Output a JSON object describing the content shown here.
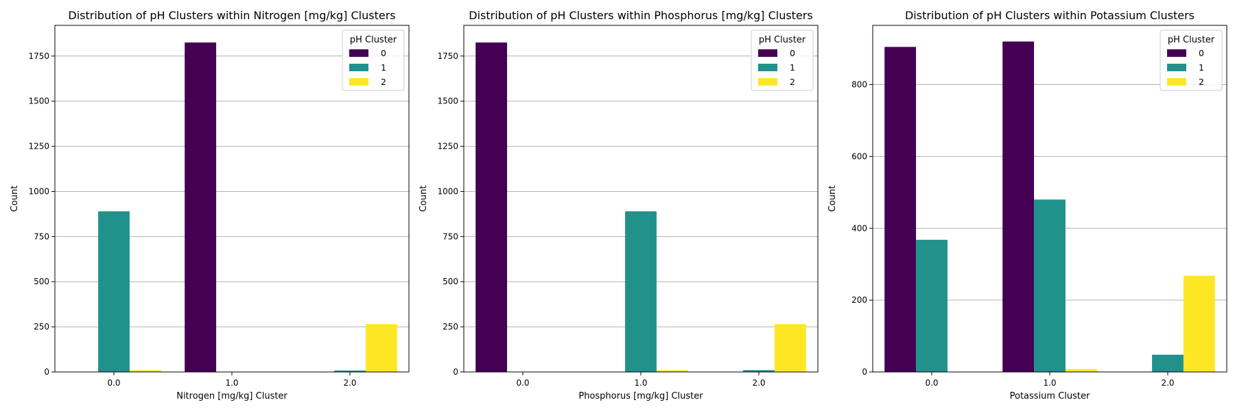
{
  "chart_data": [
    {
      "type": "bar",
      "title": "Distribution of pH Clusters within Nitrogen [mg/kg] Clusters",
      "xlabel": "Nitrogen [mg/kg] Cluster",
      "ylabel": "Count",
      "categories": [
        "0.0",
        "1.0",
        "2.0"
      ],
      "ylim": [
        0,
        1920
      ],
      "yticks": [
        0,
        250,
        500,
        750,
        1000,
        1250,
        1500,
        1750
      ],
      "grid": "y",
      "legend": {
        "title": "pH Cluster",
        "placement": "top-right"
      },
      "series": [
        {
          "name": "0",
          "color": "#440154",
          "values": [
            0,
            1825,
            0
          ]
        },
        {
          "name": "1",
          "color": "#21918c",
          "values": [
            890,
            0,
            8
          ]
        },
        {
          "name": "2",
          "color": "#fde725",
          "values": [
            10,
            0,
            265
          ]
        }
      ]
    },
    {
      "type": "bar",
      "title": "Distribution of pH Clusters within Phosphorus [mg/kg] Clusters",
      "xlabel": "Phosphorus [mg/kg] Cluster",
      "ylabel": "Count",
      "categories": [
        "0.0",
        "1.0",
        "2.0"
      ],
      "ylim": [
        0,
        1920
      ],
      "yticks": [
        0,
        250,
        500,
        750,
        1000,
        1250,
        1500,
        1750
      ],
      "grid": "y",
      "legend": {
        "title": "pH Cluster",
        "placement": "top-right"
      },
      "series": [
        {
          "name": "0",
          "color": "#440154",
          "values": [
            1825,
            0,
            0
          ]
        },
        {
          "name": "1",
          "color": "#21918c",
          "values": [
            0,
            890,
            10
          ]
        },
        {
          "name": "2",
          "color": "#fde725",
          "values": [
            0,
            10,
            265
          ]
        }
      ]
    },
    {
      "type": "bar",
      "title": "Distribution of pH Clusters within Potassium Clusters",
      "xlabel": "Potassium Cluster",
      "ylabel": "Count",
      "categories": [
        "0.0",
        "1.0",
        "2.0"
      ],
      "ylim": [
        0,
        965
      ],
      "yticks": [
        0,
        200,
        400,
        600,
        800
      ],
      "grid": "y",
      "legend": {
        "title": "pH Cluster",
        "placement": "top-right"
      },
      "series": [
        {
          "name": "0",
          "color": "#440154",
          "values": [
            905,
            920,
            0
          ]
        },
        {
          "name": "1",
          "color": "#21918c",
          "values": [
            368,
            480,
            48
          ]
        },
        {
          "name": "2",
          "color": "#fde725",
          "values": [
            0,
            8,
            268
          ]
        }
      ]
    }
  ]
}
